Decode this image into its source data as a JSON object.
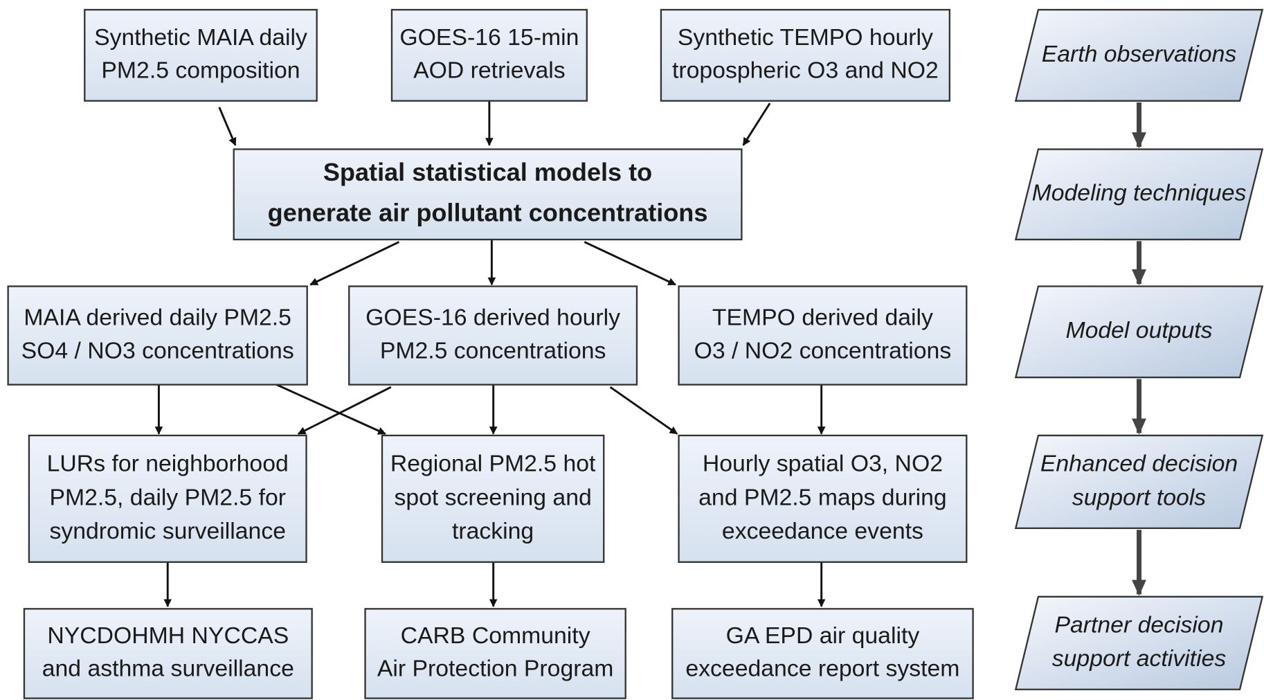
{
  "nodes": [
    {
      "lines": [
        "Synthetic MAIA daily",
        "PM2.5 composition"
      ]
    },
    {
      "lines": [
        "GOES-16 15-min",
        "AOD retrievals"
      ]
    },
    {
      "lines": [
        "Synthetic TEMPO hourly",
        "tropospheric O3 and NO2"
      ]
    },
    {
      "lines": [
        "Spatial statistical models to",
        "generate air pollutant concentrations"
      ]
    },
    {
      "lines": [
        "MAIA derived daily PM2.5",
        "SO4 / NO3 concentrations"
      ]
    },
    {
      "lines": [
        "GOES-16 derived hourly",
        "PM2.5 concentrations"
      ]
    },
    {
      "lines": [
        "TEMPO derived daily",
        "O3 / NO2 concentrations"
      ]
    },
    {
      "lines": [
        "LURs for neighborhood",
        "PM2.5, daily PM2.5 for",
        "syndromic surveillance"
      ]
    },
    {
      "lines": [
        "Regional PM2.5 hot",
        "spot screening and",
        "tracking"
      ]
    },
    {
      "lines": [
        "Hourly spatial O3, NO2",
        "and PM2.5 maps during",
        "exceedance events"
      ]
    },
    {
      "lines": [
        "NYCDOHMH NYCCAS",
        "and asthma surveillance"
      ]
    },
    {
      "lines": [
        "CARB Community",
        "Air Protection Program"
      ]
    },
    {
      "lines": [
        "GA EPD air quality",
        "exceedance report system"
      ]
    }
  ],
  "stages": [
    {
      "lines": [
        "Earth observations"
      ]
    },
    {
      "lines": [
        "Modeling techniques"
      ]
    },
    {
      "lines": [
        "Model outputs"
      ]
    },
    {
      "lines": [
        "Enhanced decision",
        "support tools"
      ]
    },
    {
      "lines": [
        "Partner decision",
        "support activities"
      ]
    }
  ]
}
